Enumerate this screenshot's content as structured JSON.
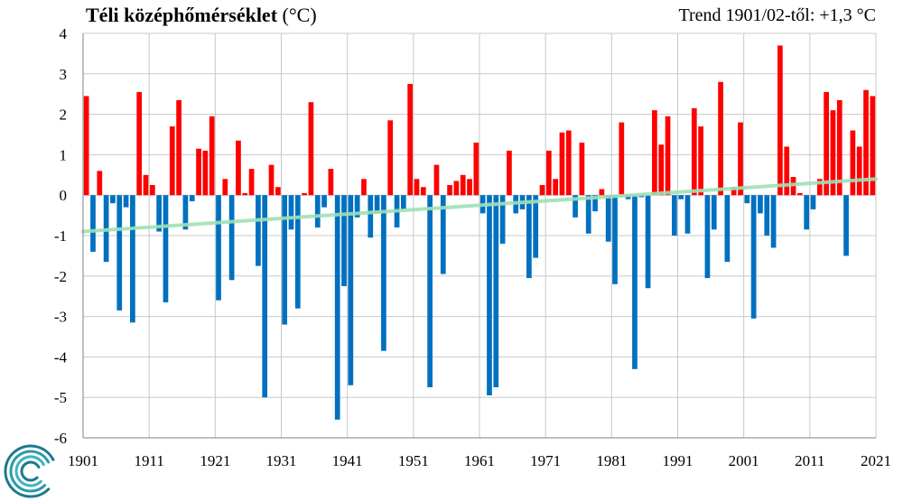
{
  "title": "Téli középhőmérséklet",
  "title_unit": "(°C)",
  "trend_label": "Trend 1901/02-től: +1,3 °C",
  "logo": "omsz-logo",
  "colors": {
    "positive": "#ff0000",
    "negative": "#0070c0",
    "trend": "#9fe0b5",
    "grid": "#c8c8c8"
  },
  "chart_data": {
    "type": "bar",
    "title": "Téli középhőmérséklet (°C)",
    "xlabel": "",
    "ylabel": "",
    "ylim": [
      -6,
      4
    ],
    "yticks": [
      -6,
      -5,
      -4,
      -3,
      -2,
      -1,
      0,
      1,
      2,
      3,
      4
    ],
    "xlim": [
      1901,
      2021
    ],
    "xticks": [
      1901,
      1911,
      1921,
      1931,
      1941,
      1951,
      1961,
      1971,
      1981,
      1991,
      2001,
      2011,
      2021
    ],
    "grid": true,
    "x": [
      1902,
      1903,
      1904,
      1905,
      1906,
      1907,
      1908,
      1909,
      1910,
      1911,
      1912,
      1913,
      1914,
      1915,
      1916,
      1917,
      1918,
      1919,
      1920,
      1921,
      1922,
      1923,
      1924,
      1925,
      1926,
      1927,
      1928,
      1929,
      1930,
      1931,
      1932,
      1933,
      1934,
      1935,
      1936,
      1937,
      1938,
      1939,
      1940,
      1941,
      1942,
      1943,
      1944,
      1945,
      1946,
      1947,
      1948,
      1949,
      1950,
      1951,
      1952,
      1953,
      1954,
      1955,
      1956,
      1957,
      1958,
      1959,
      1960,
      1961,
      1962,
      1963,
      1964,
      1965,
      1966,
      1967,
      1968,
      1969,
      1970,
      1971,
      1972,
      1973,
      1974,
      1975,
      1976,
      1977,
      1978,
      1979,
      1980,
      1981,
      1982,
      1983,
      1984,
      1985,
      1986,
      1987,
      1988,
      1989,
      1990,
      1991,
      1992,
      1993,
      1994,
      1995,
      1996,
      1997,
      1998,
      1999,
      2000,
      2001,
      2002,
      2003,
      2004,
      2005,
      2006,
      2007,
      2008,
      2009,
      2010,
      2011,
      2012,
      2013,
      2014,
      2015,
      2016,
      2017,
      2018,
      2019,
      2020,
      2021
    ],
    "values": [
      2.45,
      -1.4,
      0.6,
      -1.65,
      -0.2,
      -2.85,
      -0.3,
      -3.15,
      2.55,
      0.5,
      0.25,
      -0.9,
      -2.65,
      1.7,
      2.35,
      -0.85,
      -0.15,
      1.15,
      1.1,
      1.95,
      -2.6,
      0.4,
      -2.1,
      1.35,
      0.05,
      0.65,
      -1.75,
      -5.0,
      0.75,
      0.2,
      -3.2,
      -0.85,
      -2.8,
      0.05,
      2.3,
      -0.8,
      -0.3,
      0.65,
      -5.55,
      -2.25,
      -4.7,
      -0.55,
      0.4,
      -1.05,
      -0.45,
      -3.85,
      1.85,
      -0.8,
      -0.35,
      2.75,
      0.4,
      0.2,
      -4.75,
      0.75,
      -1.95,
      0.25,
      0.35,
      0.5,
      0.4,
      1.3,
      -0.45,
      -4.95,
      -4.75,
      -1.2,
      1.1,
      -0.45,
      -0.35,
      -2.05,
      -1.55,
      0.25,
      1.1,
      0.4,
      1.55,
      1.6,
      -0.55,
      1.3,
      -0.95,
      -0.4,
      0.15,
      -1.15,
      -2.2,
      1.8,
      -0.1,
      -4.3,
      -0.05,
      -2.3,
      2.1,
      1.25,
      1.95,
      -1.0,
      -0.1,
      -0.95,
      2.15,
      1.7,
      -2.05,
      -0.85,
      2.8,
      -1.65,
      0.2,
      1.8,
      -0.2,
      -3.05,
      -0.45,
      -1.0,
      -1.3,
      3.7,
      1.2,
      0.45,
      0.05,
      -0.85,
      -0.35,
      0.4,
      2.55,
      2.1,
      2.35,
      -1.5,
      1.6,
      1.2,
      2.6,
      2.45
    ],
    "trend": {
      "x": [
        1901,
        2021
      ],
      "y": [
        -0.9,
        0.4
      ]
    }
  }
}
